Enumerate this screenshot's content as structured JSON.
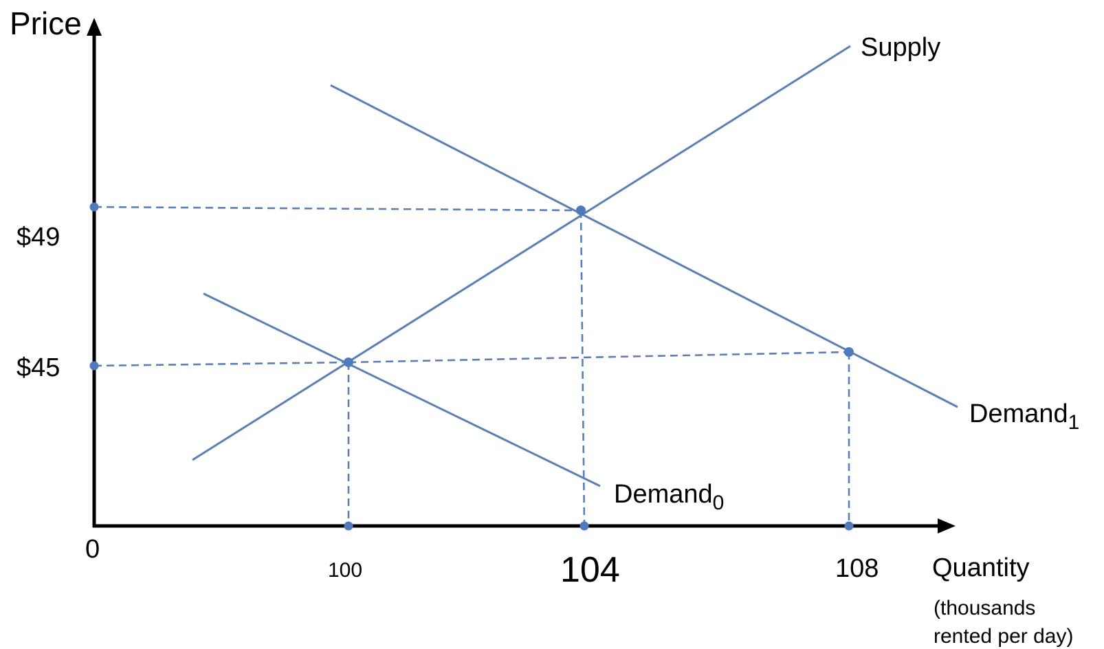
{
  "axes": {
    "y_label": "Price",
    "x_label": "Quantity",
    "x_unit_line1": "(thousands",
    "x_unit_line2": "rented per day)",
    "origin_label": "0"
  },
  "y_ticks": {
    "p49": "$49",
    "p45": "$45"
  },
  "x_ticks": {
    "q100": "100",
    "q104": "104",
    "q108": "108"
  },
  "curves": {
    "supply": "Supply",
    "demand0_base": "Demand",
    "demand0_sub": "0",
    "demand1_base": "Demand",
    "demand1_sub": "1"
  },
  "colors": {
    "curve": "#5b7fb4",
    "point": "#4f7bbd",
    "axis": "#000000"
  }
}
